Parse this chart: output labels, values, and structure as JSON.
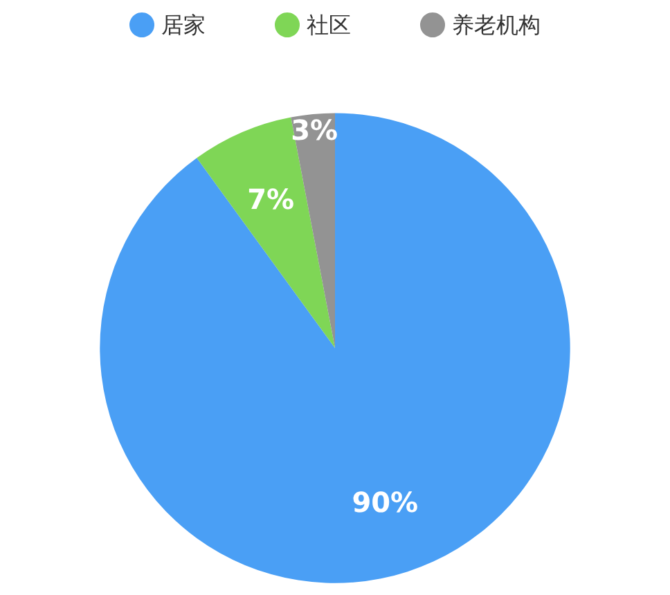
{
  "chart_data": {
    "type": "pie",
    "categories": [
      "居家",
      "社区",
      "养老机构"
    ],
    "values": [
      90,
      7,
      3
    ],
    "colors": [
      "#4a9ff5",
      "#7fd656",
      "#939393"
    ],
    "value_labels": [
      "90%",
      "7%",
      "3%"
    ],
    "legend": "top"
  }
}
